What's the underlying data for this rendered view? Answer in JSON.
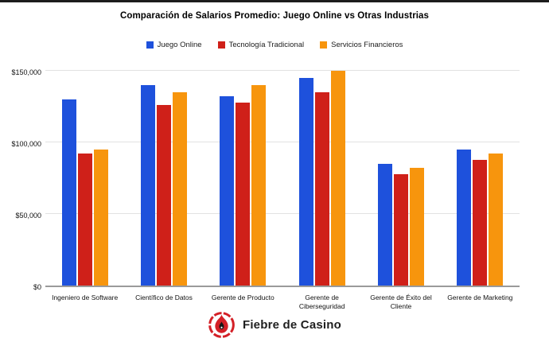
{
  "page": {
    "background": "#ffffff",
    "top_border_color": "#1c1c1c"
  },
  "chart_data": {
    "type": "bar",
    "title": "Comparación de Salarios Promedio: Juego Online vs Otras Industrias",
    "xlabel": "",
    "ylabel": "",
    "categories": [
      "Ingeniero de Software",
      "Científico de Datos",
      "Gerente de Producto",
      "Gerente de Ciberseguridad",
      "Gerente de Éxito del Cliente",
      "Gerente de Marketing"
    ],
    "series": [
      {
        "name": "Juego Online",
        "color": "#1e51dc",
        "values": [
          130000,
          140000,
          132000,
          145000,
          85000,
          95000
        ]
      },
      {
        "name": "Tecnología Tradicional",
        "color": "#cf2019",
        "values": [
          92000,
          126000,
          128000,
          135000,
          78000,
          88000
        ]
      },
      {
        "name": "Servicios Financieros",
        "color": "#f7950d",
        "values": [
          95000,
          135000,
          140000,
          150000,
          82000,
          92000
        ]
      }
    ],
    "yticks": [
      {
        "label": "$0",
        "value": 0
      },
      {
        "label": "$50,000",
        "value": 50000
      },
      {
        "label": "$100,000",
        "value": 100000
      },
      {
        "label": "$150,000",
        "value": 150000
      }
    ],
    "ylim": [
      0,
      153000
    ],
    "grid": true,
    "legend_position": "top",
    "colors": {
      "gridline": "#e2e2e2",
      "baseline": "#9a9a9a"
    }
  },
  "footer": {
    "brand": "Fiebre de Casino",
    "logo_icon": "flame-icon",
    "logo_color": "#d42027"
  }
}
